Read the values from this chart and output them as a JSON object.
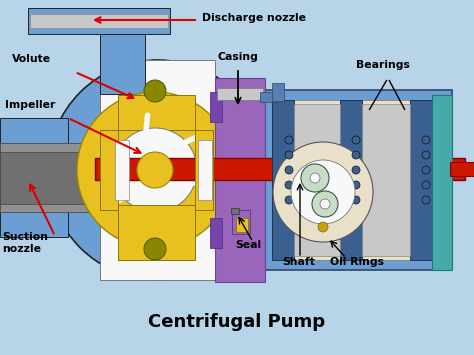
{
  "title": "Centrifugal Pump",
  "background_color": "#b8d4e8",
  "labels": {
    "discharge_nozzle": "Discharge nozzle",
    "volute": "Volute",
    "impeller": "Impeller",
    "suction_nozzle": "Suction\nnozzle",
    "casing": "Casing",
    "bearings": "Bearings",
    "seal": "Seal",
    "shaft": "Shaft",
    "oil_rings": "Oil Rings"
  },
  "colors": {
    "blue_body": "#6b9fd4",
    "blue_mid": "#5580b0",
    "blue_dark": "#3a6090",
    "yellow": "#e8c020",
    "yellow_dark": "#c8a000",
    "red_shaft": "#cc1800",
    "purple": "#9966bb",
    "purple_dark": "#7744aa",
    "gray": "#909090",
    "gray_light": "#c8c8c8",
    "gray_dark": "#707070",
    "olive": "#888800",
    "teal": "#44aaaa",
    "green_light": "#c8ddc8",
    "white": "#f8f8f8",
    "cream": "#e8e0c8",
    "arrow_red": "#dd0000",
    "black": "#111111"
  }
}
